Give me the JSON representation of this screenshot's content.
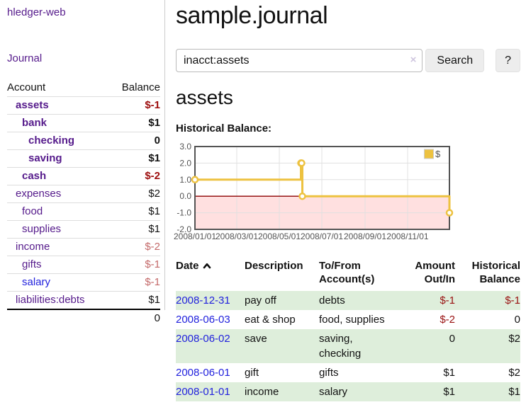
{
  "colors": {
    "link_purple": "#551a8b",
    "link_blue": "#2222dd",
    "negative_strong": "#9d0d0d",
    "negative_soft": "#c46a6a",
    "row_green": "#deeedb",
    "series_gold": "#edc240",
    "zero_line": "#8b0000",
    "negative_region": "#ff0000"
  },
  "sidebar": {
    "app_title": "hledger-web",
    "journal_link": "Journal",
    "accounts": {
      "header_account": "Account",
      "header_balance": "Balance",
      "rows": [
        {
          "name": "assets",
          "balance": "$-1",
          "level": 1,
          "bold": true,
          "neg": "strong"
        },
        {
          "name": "bank",
          "balance": "$1",
          "level": 2,
          "bold": true
        },
        {
          "name": "checking",
          "balance": "0",
          "level": 3,
          "bold": true
        },
        {
          "name": "saving",
          "balance": "$1",
          "level": 3,
          "bold": true
        },
        {
          "name": "cash",
          "balance": "$-2",
          "level": 2,
          "bold": true,
          "neg": "strong"
        },
        {
          "name": "expenses",
          "balance": "$2",
          "level": 1
        },
        {
          "name": "food",
          "balance": "$1",
          "level": 2
        },
        {
          "name": "supplies",
          "balance": "$1",
          "level": 2
        },
        {
          "name": "income",
          "balance": "$-2",
          "level": 1,
          "neg": "soft"
        },
        {
          "name": "gifts",
          "balance": "$-1",
          "level": 2,
          "neg": "soft"
        },
        {
          "name": "salary",
          "balance": "$-1",
          "level": 2,
          "neg": "soft",
          "link": "blue"
        },
        {
          "name": "liabilities:debts",
          "balance": "$1",
          "level": 1
        }
      ],
      "total": "0"
    }
  },
  "main": {
    "title": "sample.journal",
    "search": {
      "value": "inacct:assets",
      "clear_icon": "×",
      "search_button": "Search",
      "help_button": "?"
    },
    "account_heading": "assets",
    "chart_heading": "Historical Balance:"
  },
  "chart_data": {
    "type": "line",
    "subtype": "step",
    "title": "Historical Balance",
    "legend": {
      "label": "$",
      "position": "top-right"
    },
    "xrange": [
      "2008-01-01",
      "2008-12-31"
    ],
    "ylim": [
      -2,
      3
    ],
    "yticks": [
      3.0,
      2.0,
      1.0,
      0.0,
      -1.0,
      -2.0
    ],
    "xticks": [
      "2008/01/01",
      "2008/03/01",
      "2008/05/01",
      "2008/07/01",
      "2008/09/01",
      "2008/11/01"
    ],
    "grid": true,
    "series": [
      {
        "name": "$",
        "points": [
          {
            "date": "2008-01-01",
            "value": 1
          },
          {
            "date": "2008-06-01",
            "value": 2
          },
          {
            "date": "2008-06-02",
            "value": 2
          },
          {
            "date": "2008-06-03",
            "value": 0
          },
          {
            "date": "2008-12-31",
            "value": -1
          }
        ]
      }
    ]
  },
  "register": {
    "headers": {
      "date": "Date",
      "description": "Description",
      "accounts_line1": "To/From",
      "accounts_line2": "Account(s)",
      "amount_line1": "Amount",
      "amount_line2": "Out/In",
      "balance_line1": "Historical",
      "balance_line2": "Balance"
    },
    "rows": [
      {
        "date": "2008-12-31",
        "description": "pay off",
        "accounts": "debts",
        "amount": "$-1",
        "balance": "$-1",
        "amount_neg": true,
        "balance_neg": true,
        "shade": true
      },
      {
        "date": "2008-06-03",
        "description": "eat & shop",
        "accounts": "food, supplies",
        "amount": "$-2",
        "balance": "0",
        "amount_neg": true
      },
      {
        "date": "2008-06-02",
        "description": "save",
        "accounts": "saving, checking",
        "amount": "0",
        "balance": "$2",
        "shade": true
      },
      {
        "date": "2008-06-01",
        "description": "gift",
        "accounts": "gifts",
        "amount": "$1",
        "balance": "$2"
      },
      {
        "date": "2008-01-01",
        "description": "income",
        "accounts": "salary",
        "amount": "$1",
        "balance": "$1",
        "shade": true
      }
    ]
  }
}
